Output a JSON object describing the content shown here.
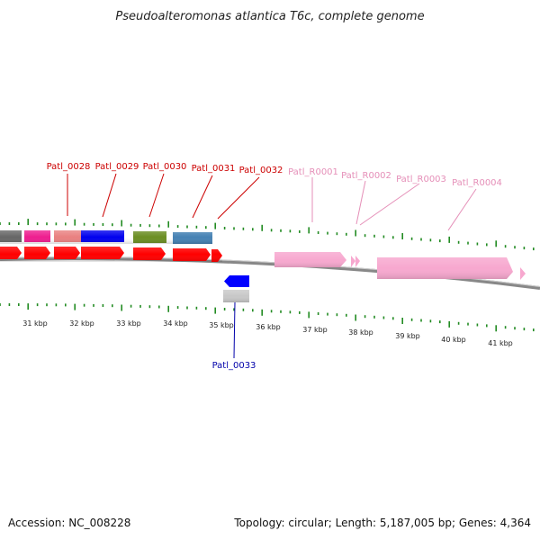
{
  "title": "Pseudoalteromonas atlantica T6c, complete genome",
  "footer": {
    "accession": "Accession: NC_008228",
    "summary": "Topology: circular; Length: 5,187,005 bp; Genes: 4,364"
  },
  "colors": {
    "cds_label": "#cc0000",
    "rrna_label": "#e58fb8",
    "reverse_label": "#0000aa",
    "cds_arrow": "#ff0000",
    "rrna_arrow": "#f7a8cf",
    "reverse_arrow": "#0000ff",
    "backbone": "#888888",
    "ticks": "#228b22"
  },
  "axis": {
    "unit": "kbp",
    "ticks": [
      "31 kbp",
      "32 kbp",
      "33 kbp",
      "34 kbp",
      "35 kbp",
      "36 kbp",
      "37 kbp",
      "38 kbp",
      "39 kbp",
      "40 kbp",
      "41 kbp"
    ]
  },
  "forward_labels": [
    {
      "name": "Patl_0028",
      "kind": "cds"
    },
    {
      "name": "Patl_0029",
      "kind": "cds"
    },
    {
      "name": "Patl_0030",
      "kind": "cds"
    },
    {
      "name": "Patl_0031",
      "kind": "cds"
    },
    {
      "name": "Patl_0032",
      "kind": "cds"
    },
    {
      "name": "Patl_R0001",
      "kind": "rrna"
    },
    {
      "name": "Patl_R0002",
      "kind": "rrna"
    },
    {
      "name": "Patl_R0003",
      "kind": "rrna"
    },
    {
      "name": "Patl_R0004",
      "kind": "rrna"
    }
  ],
  "reverse_labels": [
    {
      "name": "Patl_0033",
      "kind": "reverse"
    }
  ],
  "cog_blocks": [
    {
      "name": "cog-block-1",
      "color": "#666666"
    },
    {
      "name": "cog-block-2",
      "color": "#ee1d8f"
    },
    {
      "name": "cog-block-3",
      "color": "#e98080"
    },
    {
      "name": "cog-block-4",
      "color": "#0000ee"
    },
    {
      "name": "cog-block-5",
      "color": "#6b8e23"
    },
    {
      "name": "cog-block-6",
      "color": "#4682b4"
    }
  ]
}
